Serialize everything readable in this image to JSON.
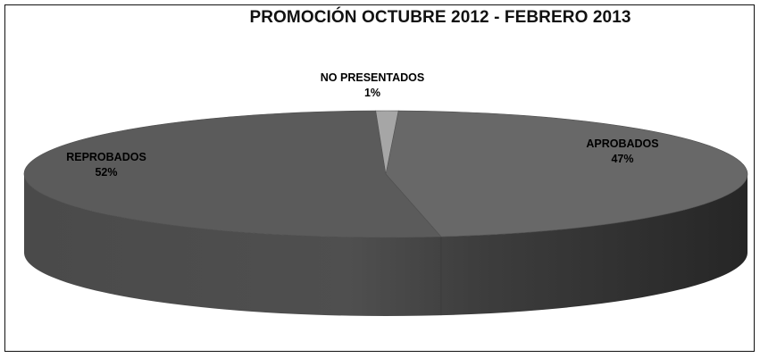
{
  "chart_data": {
    "type": "pie",
    "title": "PROMOCIÓN OCTUBRE 2012 - FEBRERO 2013",
    "three_d": true,
    "slices": [
      {
        "label": "APROBADOS",
        "value": 47,
        "value_label": "47%",
        "color": "#686868",
        "side_color": "#3a3a3a"
      },
      {
        "label": "REPROBADOS",
        "value": 52,
        "value_label": "52%",
        "color": "#5b5b5b",
        "side_color": "#454545"
      },
      {
        "label": "NO PRESENTADOS",
        "value": 1,
        "value_label": "1%",
        "color": "#a6a6a6",
        "side_color": "#7a7a7a"
      }
    ],
    "legend": "none"
  }
}
